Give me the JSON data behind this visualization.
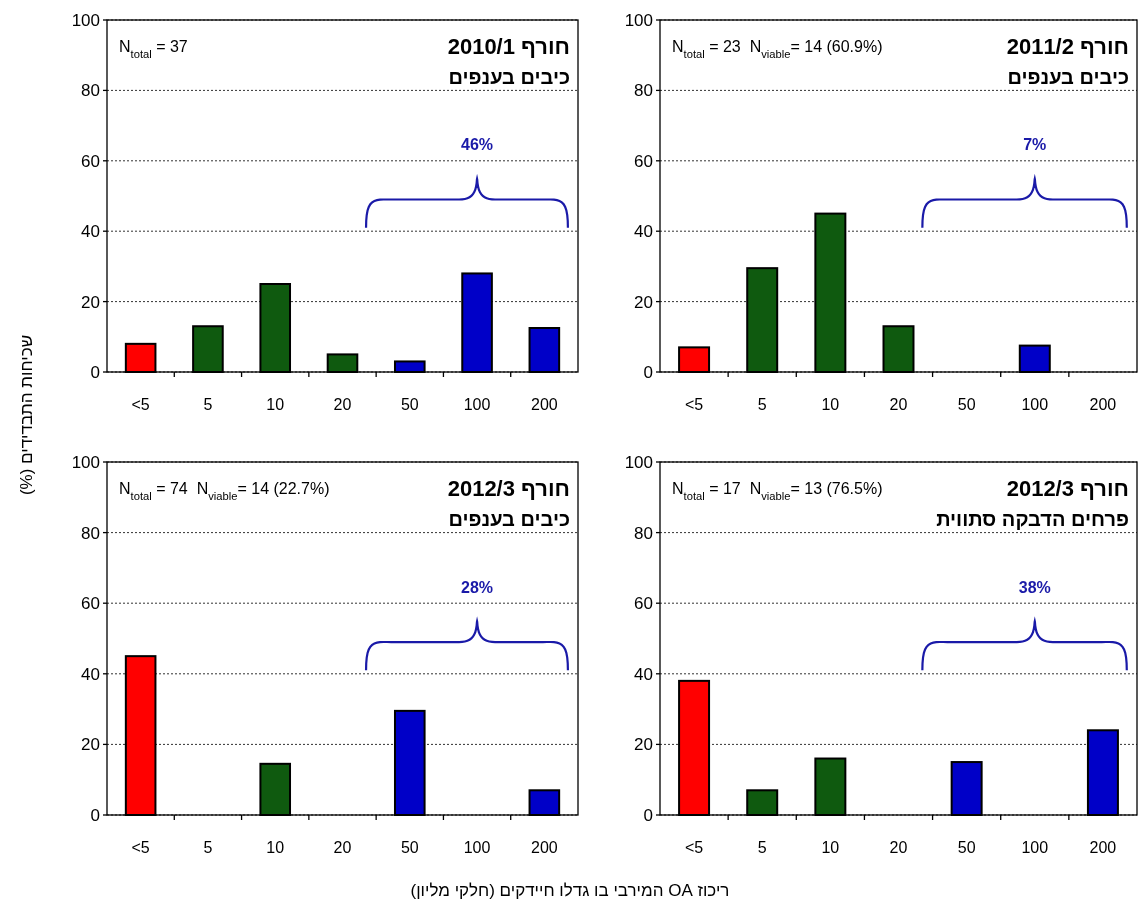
{
  "chart_data": [
    {
      "type": "bar",
      "title": "חורף 2010/1",
      "subtitle": "כיבים בענפים",
      "categories": [
        "<5",
        "5",
        "10",
        "20",
        "50",
        "100",
        "200"
      ],
      "values": [
        8,
        13,
        25,
        5,
        3,
        28,
        12.5
      ],
      "colors": [
        "#ff0000",
        "#0f5a0f",
        "#0f5a0f",
        "#0f5a0f",
        "#0000c8",
        "#0000c8",
        "#0000c8"
      ],
      "ylim": [
        0,
        100
      ],
      "yticks": [
        0,
        20,
        40,
        60,
        80,
        100
      ],
      "grid": "y",
      "annotations": [
        "N$_{total}$ = 37",
        "46%"
      ]
    },
    {
      "type": "bar",
      "title": "חורף 2011/2",
      "subtitle": "כיבים בענפים",
      "categories": [
        "<5",
        "5",
        "10",
        "20",
        "50",
        "100",
        "200"
      ],
      "values": [
        7,
        29.5,
        45,
        13,
        0,
        7.5,
        0
      ],
      "colors": [
        "#ff0000",
        "#0f5a0f",
        "#0f5a0f",
        "#0f5a0f",
        "#0000c8",
        "#0000c8",
        "#0000c8"
      ],
      "ylim": [
        0,
        100
      ],
      "yticks": [
        0,
        20,
        40,
        60,
        80,
        100
      ],
      "grid": "y",
      "annotations": [
        "N$_{total}$ = 23  N$_{viable}$= 14 (60.9%)",
        "7%"
      ]
    },
    {
      "type": "bar",
      "title": "חורף 2012/3",
      "subtitle": "כיבים בענפים",
      "categories": [
        "<5",
        "5",
        "10",
        "20",
        "50",
        "100",
        "200"
      ],
      "values": [
        45,
        0,
        14.5,
        0,
        29.5,
        0,
        7
      ],
      "colors": [
        "#ff0000",
        "#0f5a0f",
        "#0f5a0f",
        "#0f5a0f",
        "#0000c8",
        "#0000c8",
        "#0000c8"
      ],
      "ylim": [
        0,
        100
      ],
      "yticks": [
        0,
        20,
        40,
        60,
        80,
        100
      ],
      "grid": "y",
      "ylabel": "שכיחות התבדידים (%)",
      "xlabel": "ריכוז OA המירבי בו גדלו חיידקים (חלקי מליון)",
      "annotations": [
        "N$_{total}$ = 74  N$_{viable}$= 14 (22.7%)",
        "28%"
      ]
    },
    {
      "type": "bar",
      "title": "חורף 2012/3",
      "subtitle": "פרחים הדבקה סתווית",
      "categories": [
        "<5",
        "5",
        "10",
        "20",
        "50",
        "100",
        "200"
      ],
      "values": [
        38,
        7,
        16,
        0,
        15,
        0,
        24
      ],
      "colors": [
        "#ff0000",
        "#0f5a0f",
        "#0f5a0f",
        "#0f5a0f",
        "#0000c8",
        "#0000c8",
        "#0000c8"
      ],
      "ylim": [
        0,
        100
      ],
      "yticks": [
        0,
        20,
        40,
        60,
        80,
        100
      ],
      "grid": "y",
      "annotations": [
        "N$_{total}$ = 17  N$_{viable}$= 13 (76.5%)",
        "38%"
      ]
    }
  ]
}
